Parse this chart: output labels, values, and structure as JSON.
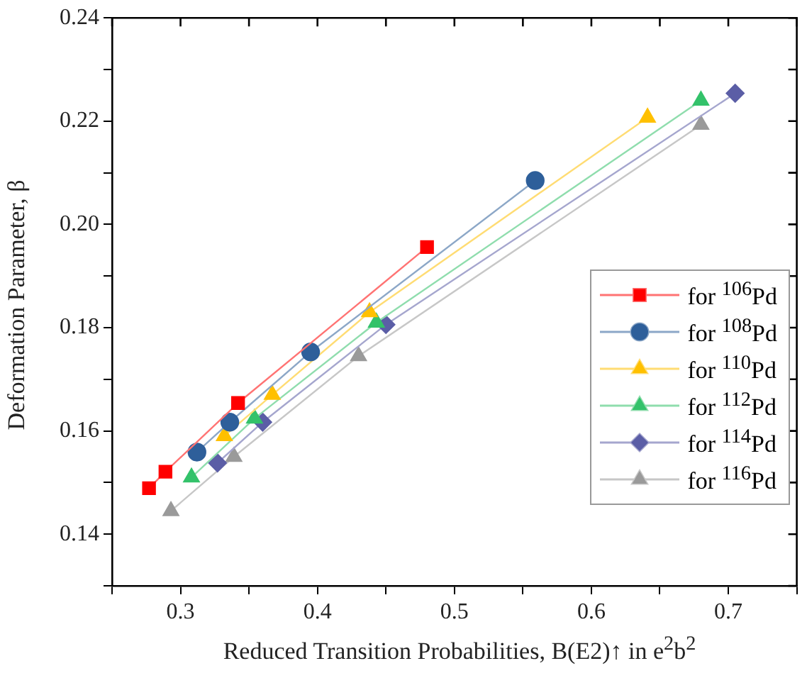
{
  "chart_data": {
    "type": "line",
    "xlabel": "Reduced Transition Probabilities, B(E2)↑ in e$^{2}$b$^{2}$",
    "ylabel": "Deformation Parameter, β",
    "xlim": [
      0.25,
      0.75
    ],
    "xticks": [
      {
        "value": 0.25,
        "label": null
      },
      0.3,
      {
        "value": 0.35,
        "label": null
      },
      0.4,
      {
        "value": 0.45,
        "label": null
      },
      0.5,
      {
        "value": 0.55,
        "label": null
      },
      0.6,
      {
        "value": 0.65,
        "label": null
      },
      0.7,
      {
        "value": 0.75,
        "label": null
      }
    ],
    "ylim": [
      0.13,
      0.24
    ],
    "yticks": [
      {
        "value": 0.13,
        "label": null
      },
      0.14,
      {
        "value": 0.15,
        "label": null
      },
      0.16,
      {
        "value": 0.17,
        "label": null
      },
      0.18,
      {
        "value": 0.19,
        "label": null
      },
      {
        "value": 0.2,
        "label": "0.20"
      },
      {
        "value": 0.21,
        "label": null
      },
      0.22,
      {
        "value": 0.23,
        "label": null
      },
      0.24
    ],
    "grid": false,
    "legend": "right",
    "line_style": "solid",
    "series": [
      {
        "name": "for $^{106}$Pd",
        "color": "#ff0000",
        "marker": "square",
        "x": [
          0.277,
          0.289,
          0.342,
          0.48
        ],
        "values": [
          0.1489,
          0.1521,
          0.1654,
          0.1956
        ]
      },
      {
        "name": "for $^{108}$Pd",
        "color": "#2e5f9a",
        "marker": "circle",
        "x": [
          0.312,
          0.336,
          0.395,
          0.559
        ],
        "values": [
          0.1559,
          0.1617,
          0.1753,
          0.2085
        ]
      },
      {
        "name": "for $^{110}$Pd",
        "color": "#ffc000",
        "marker": "triangle",
        "x": [
          0.332,
          0.367,
          0.438,
          0.641
        ],
        "values": [
          0.159,
          0.167,
          0.183,
          0.2207
        ]
      },
      {
        "name": "for $^{112}$Pd",
        "color": "#33c26a",
        "marker": "triangle",
        "x": [
          0.308,
          0.354,
          0.443,
          0.68
        ],
        "values": [
          0.151,
          0.1624,
          0.181,
          0.224
        ]
      },
      {
        "name": "for $^{114}$Pd",
        "color": "#5b5ea6",
        "marker": "diamond",
        "x": [
          0.327,
          0.36,
          0.45,
          0.705
        ],
        "values": [
          0.1538,
          0.1617,
          0.1806,
          0.2254
        ]
      },
      {
        "name": "for $^{116}$Pd",
        "color": "#9a9a9a",
        "marker": "triangle",
        "x": [
          0.293,
          0.339,
          0.43,
          0.68
        ],
        "values": [
          0.1445,
          0.155,
          0.1745,
          0.2193
        ]
      }
    ]
  }
}
